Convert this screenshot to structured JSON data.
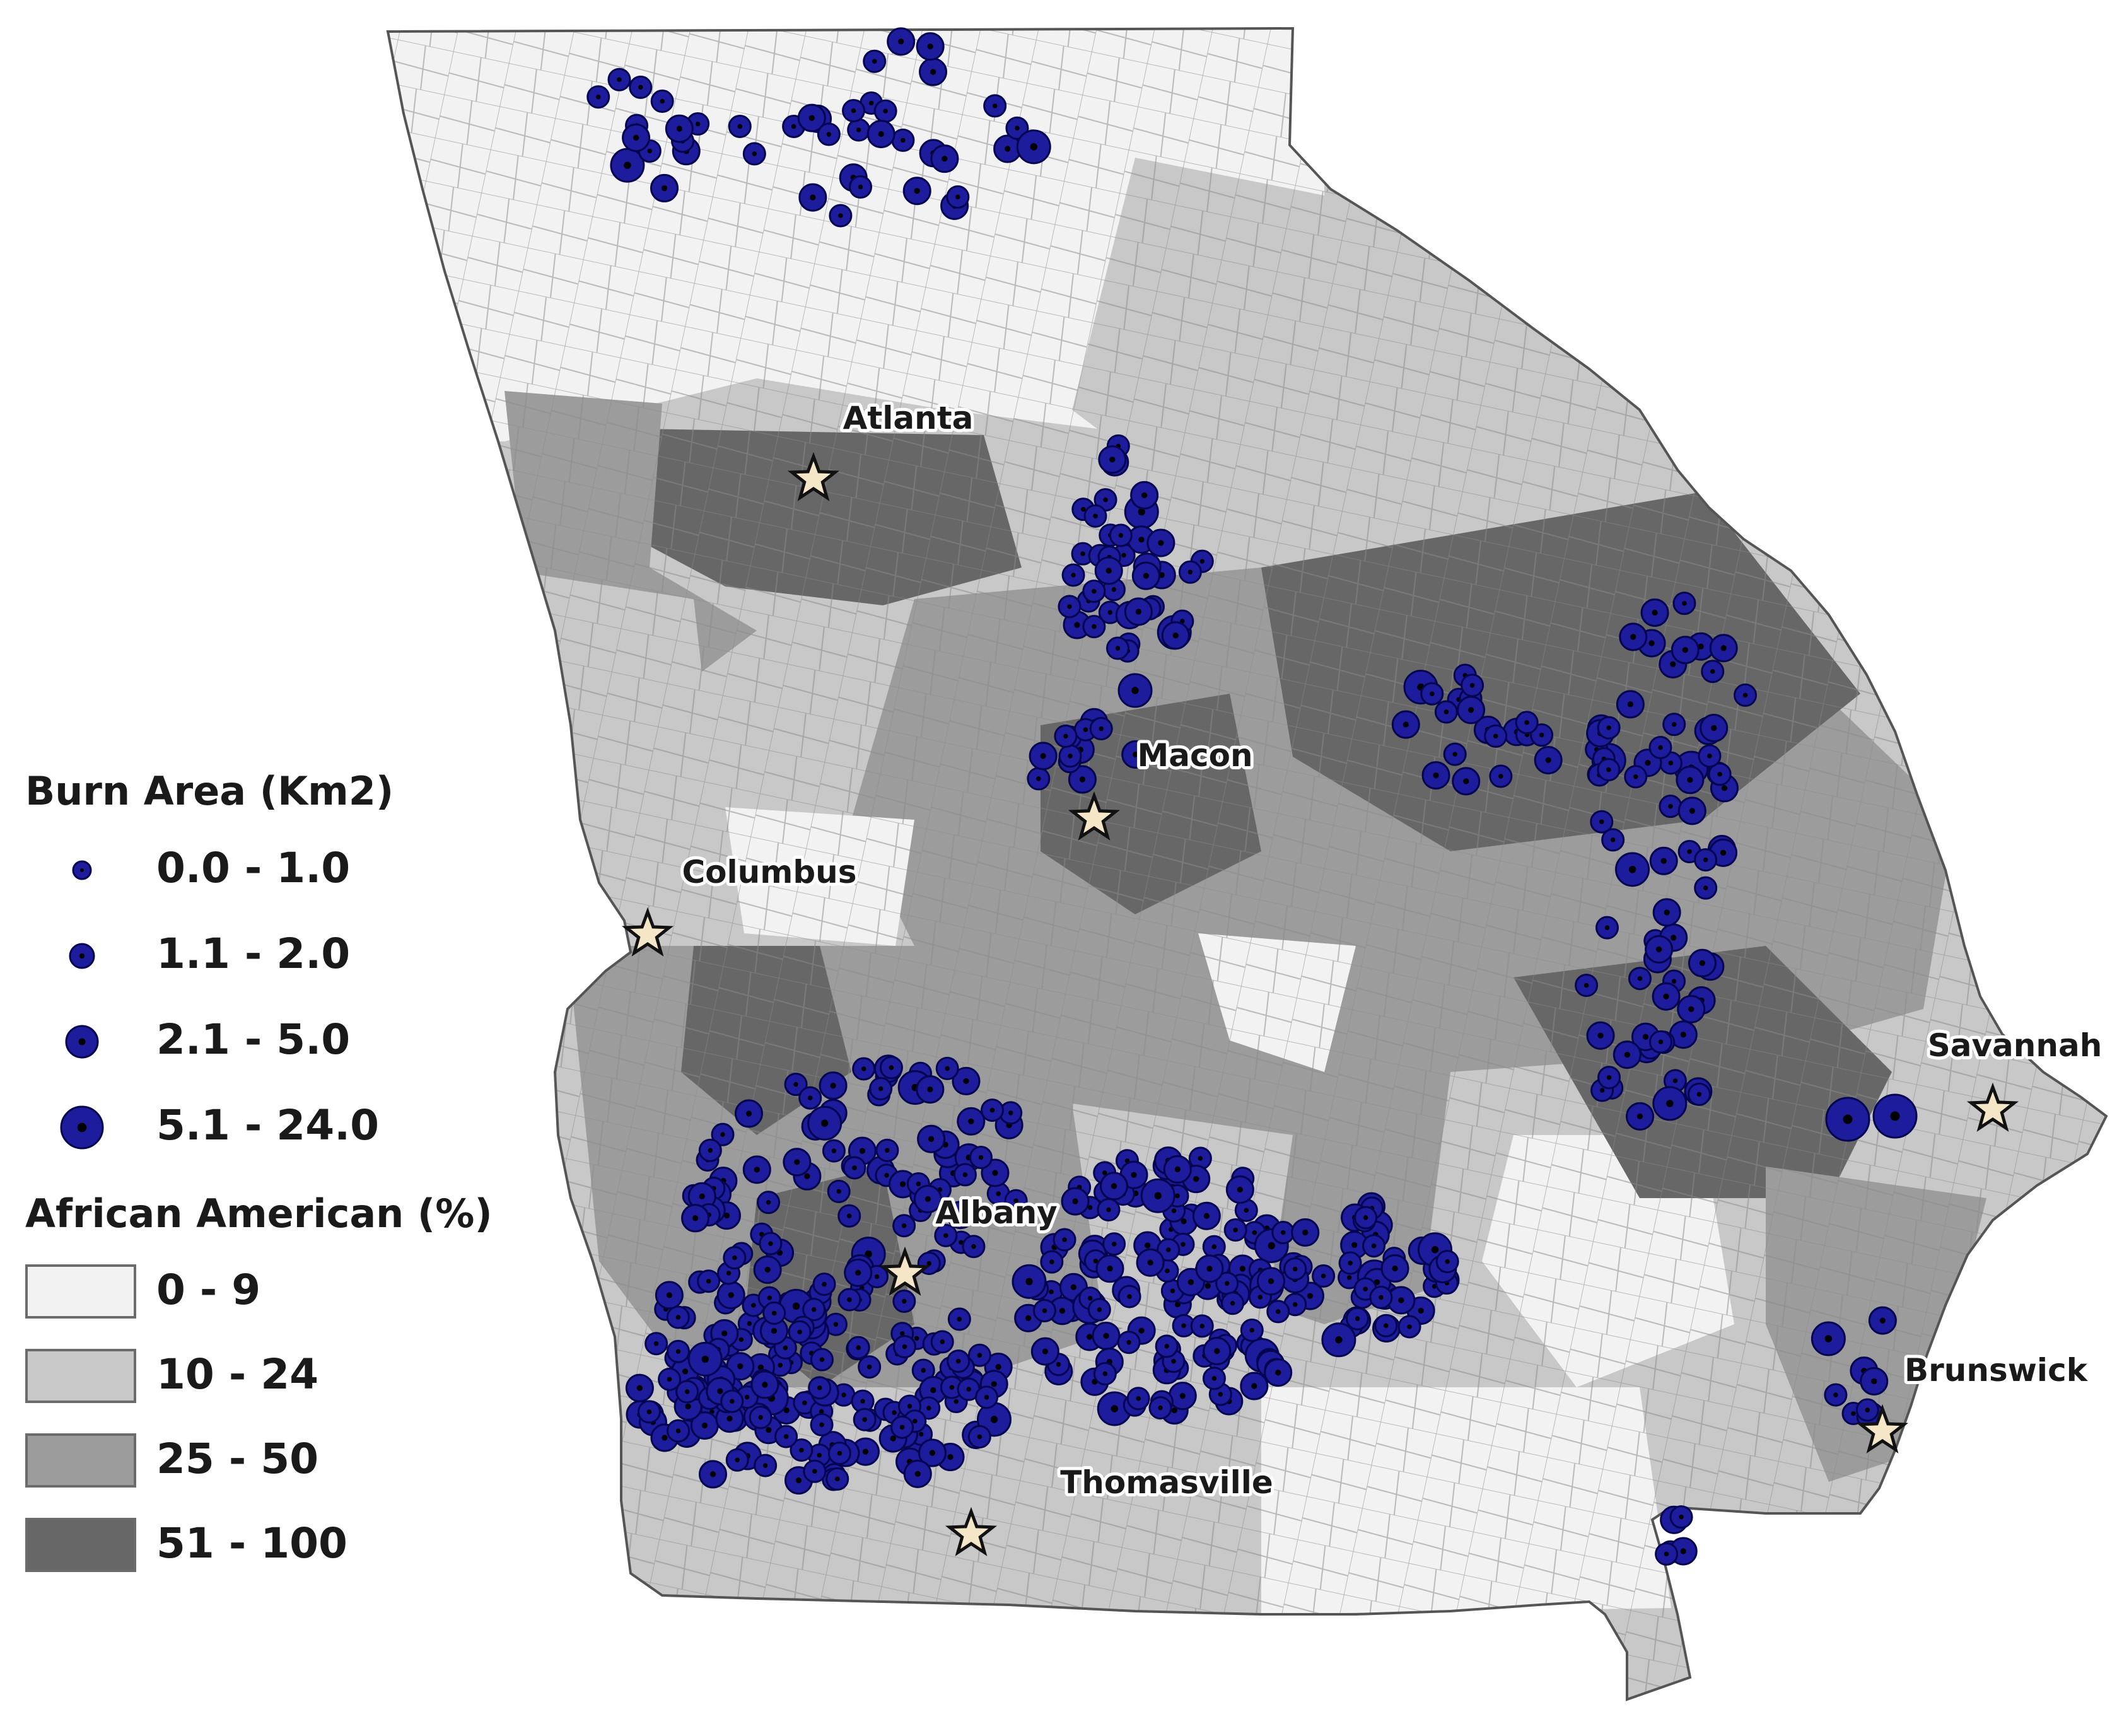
{
  "legend": {
    "burn_title": "Burn Area (Km2)",
    "burn_classes": [
      {
        "label": "0.0 - 1.0",
        "size": "smallest"
      },
      {
        "label": "1.1 - 2.0",
        "size": "small"
      },
      {
        "label": "2.1 - 5.0",
        "size": "medium"
      },
      {
        "label": "5.1 - 24.0",
        "size": "largest"
      }
    ],
    "aa_title": "African American (%)",
    "aa_classes": [
      {
        "label": "0 - 9",
        "color": "#f2f2f2"
      },
      {
        "label": "10 - 24",
        "color": "#c8c8c8"
      },
      {
        "label": "25 - 50",
        "color": "#9c9c9c"
      },
      {
        "label": "51 - 100",
        "color": "#676767"
      }
    ]
  },
  "cities": [
    {
      "name": "Atlanta"
    },
    {
      "name": "Macon"
    },
    {
      "name": "Columbus"
    },
    {
      "name": "Albany"
    },
    {
      "name": "Thomasville"
    },
    {
      "name": "Savannah"
    },
    {
      "name": "Brunswick"
    }
  ],
  "colors": {
    "burn_fill": "#1c1c9c",
    "burn_outline": "#050550",
    "burn_center": "#000000",
    "state_outline": "#555555",
    "city_star": "#f5e6c8"
  }
}
